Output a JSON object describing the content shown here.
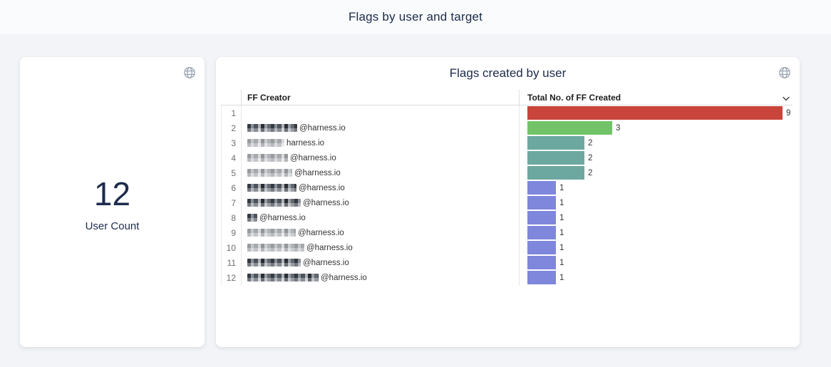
{
  "page": {
    "title": "Flags by user and target"
  },
  "user_count_card": {
    "value": "12",
    "label": "User Count",
    "globe_icon": "globe-icon"
  },
  "flags_card": {
    "title": "Flags created by user",
    "globe_icon": "globe-icon",
    "sort_icon": "chevron-down-icon",
    "columns": [
      "FF Creator",
      "Total No. of FF Created"
    ],
    "rows": [
      {
        "num": "1",
        "email_suffix": "",
        "redact_w": 0,
        "redact_light": false,
        "value": 9,
        "color": "#c9443a"
      },
      {
        "num": "2",
        "email_suffix": "@harness.io",
        "redact_w": 70,
        "redact_light": false,
        "value": 3,
        "color": "#72c368"
      },
      {
        "num": "3",
        "email_suffix": "harness.io",
        "redact_w": 52,
        "redact_light": true,
        "value": 2,
        "color": "#6ca89f"
      },
      {
        "num": "4",
        "email_suffix": "@harness.io",
        "redact_w": 57,
        "redact_light": true,
        "value": 2,
        "color": "#6ca89f"
      },
      {
        "num": "5",
        "email_suffix": "@harness.io",
        "redact_w": 63,
        "redact_light": true,
        "value": 2,
        "color": "#6ca89f"
      },
      {
        "num": "6",
        "email_suffix": "@harness.io",
        "redact_w": 69,
        "redact_light": false,
        "value": 1,
        "color": "#7e87db"
      },
      {
        "num": "7",
        "email_suffix": "@harness.io",
        "redact_w": 75,
        "redact_light": false,
        "value": 1,
        "color": "#7e87db"
      },
      {
        "num": "8",
        "email_suffix": "@harness.io",
        "redact_w": 14,
        "redact_light": false,
        "value": 1,
        "color": "#7e87db"
      },
      {
        "num": "9",
        "email_suffix": "@harness.io",
        "redact_w": 68,
        "redact_light": true,
        "value": 1,
        "color": "#7e87db"
      },
      {
        "num": "10",
        "email_suffix": "@harness.io",
        "redact_w": 80,
        "redact_light": true,
        "value": 1,
        "color": "#7e87db"
      },
      {
        "num": "11",
        "email_suffix": "@harness.io",
        "redact_w": 75,
        "redact_light": false,
        "value": 1,
        "color": "#7e87db"
      },
      {
        "num": "12",
        "email_suffix": "@harness.io",
        "redact_w": 100,
        "redact_light": false,
        "value": 1,
        "color": "#7e87db"
      }
    ]
  },
  "chart_data": {
    "type": "bar",
    "orientation": "horizontal",
    "title": "Flags created by user",
    "categories": [
      "",
      "@harness.io",
      "harness.io",
      "@harness.io",
      "@harness.io",
      "@harness.io",
      "@harness.io",
      "@harness.io",
      "@harness.io",
      "@harness.io",
      "@harness.io",
      "@harness.io"
    ],
    "values": [
      9,
      3,
      2,
      2,
      2,
      1,
      1,
      1,
      1,
      1,
      1,
      1
    ],
    "bar_colors": [
      "#c9443a",
      "#72c368",
      "#6ca89f",
      "#6ca89f",
      "#6ca89f",
      "#7e87db",
      "#7e87db",
      "#7e87db",
      "#7e87db",
      "#7e87db",
      "#7e87db",
      "#7e87db"
    ],
    "xlim": [
      0,
      9
    ],
    "data_labels": true,
    "note": "creator names pixelated/redacted in source image"
  },
  "colors": {
    "page_bg": "#f2f4f7",
    "header_bg": "#fafbfd",
    "card_bg": "#ffffff",
    "title_text": "#1b2a49",
    "icon_gray": "#9aa4b0",
    "bar_red": "#c9443a",
    "bar_green": "#72c368",
    "bar_teal": "#6ca89f",
    "bar_purple": "#7e87db"
  }
}
